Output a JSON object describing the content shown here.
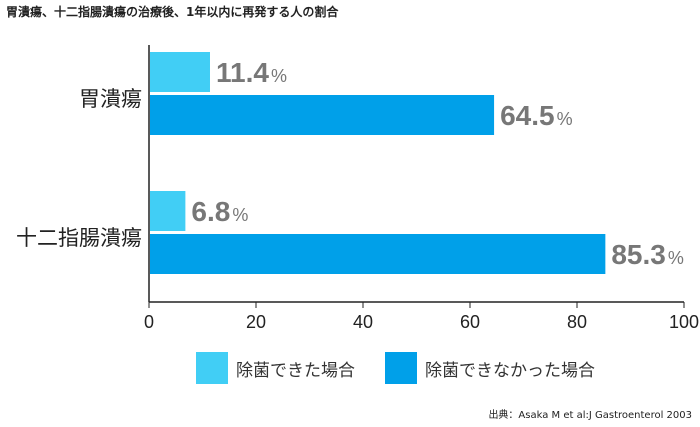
{
  "chart_data": {
    "type": "bar",
    "orientation": "horizontal",
    "title": "胃潰瘍、十二指腸潰瘍の治療後、1年以内に再発する人の割合",
    "categories": [
      "胃潰瘍",
      "十二指腸潰瘍"
    ],
    "series": [
      {
        "name": "除菌できた場合",
        "color": "#41cef5",
        "values": [
          11.4,
          6.8
        ]
      },
      {
        "name": "除菌できなかった場合",
        "color": "#00a0e9",
        "values": [
          64.5,
          85.3
        ]
      }
    ],
    "value_suffix": "%",
    "xlim": [
      0,
      100
    ],
    "xticks": [
      0,
      20,
      40,
      60,
      80,
      100
    ],
    "grid": false,
    "legend_position": "bottom",
    "label_color": "#777777"
  },
  "source": "出典：Asaka M et al:J Gastroenterol 2003"
}
